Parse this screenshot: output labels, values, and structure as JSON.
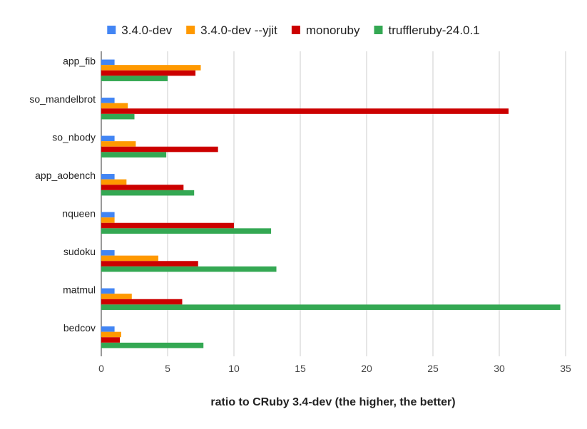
{
  "chart_data": {
    "type": "bar",
    "orientation": "horizontal",
    "title": "",
    "xlabel": "ratio to CRuby 3.4-dev (the higher, the better)",
    "ylabel": "",
    "xlim": [
      0,
      35
    ],
    "xticks": [
      "0",
      "5",
      "10",
      "15",
      "20",
      "25",
      "30",
      "35"
    ],
    "grid": true,
    "legend_position": "top",
    "categories": [
      "app_fib",
      "so_mandelbrot",
      "so_nbody",
      "app_aobench",
      "nqueen",
      "sudoku",
      "matmul",
      "bedcov"
    ],
    "series": [
      {
        "name": "3.4.0-dev",
        "color": "#4285f4",
        "values": [
          1.0,
          1.0,
          1.0,
          1.0,
          1.0,
          1.0,
          1.0,
          1.0
        ]
      },
      {
        "name": "3.4.0-dev --yjit",
        "color": "#ff9900",
        "values": [
          7.5,
          2.0,
          2.6,
          1.9,
          1.0,
          4.3,
          2.3,
          1.5
        ]
      },
      {
        "name": "monoruby",
        "color": "#cc0000",
        "values": [
          7.1,
          30.7,
          8.8,
          6.2,
          10.0,
          7.3,
          6.1,
          1.4
        ]
      },
      {
        "name": "truffleruby-24.0.1",
        "color": "#34a853",
        "values": [
          5.0,
          2.5,
          4.9,
          7.0,
          12.8,
          13.2,
          34.6,
          7.7
        ]
      }
    ]
  }
}
